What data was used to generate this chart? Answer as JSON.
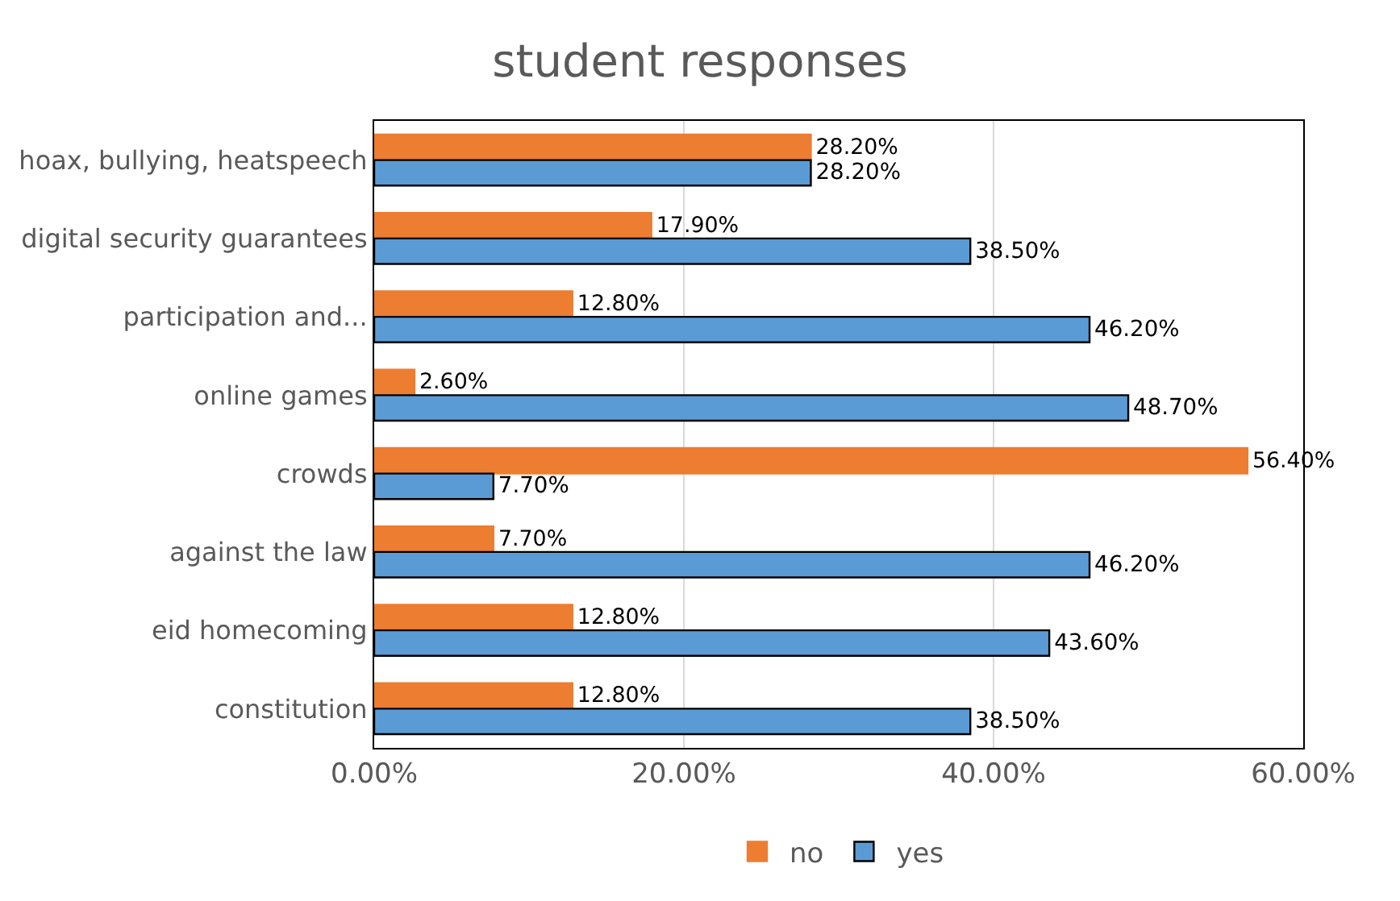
{
  "chart_data": {
    "type": "bar",
    "orientation": "horizontal",
    "title": "student responses",
    "categories": [
      "hoax, bullying, heatspeech",
      "digital security guarantees",
      "participation and...",
      "online games",
      "crowds",
      "against the law",
      "eid homecoming",
      "constitution"
    ],
    "series": [
      {
        "name": "no",
        "color": "#ed7d31",
        "values": [
          28.2,
          17.9,
          12.8,
          2.6,
          56.4,
          7.7,
          12.8,
          12.8
        ],
        "value_labels": [
          "28.20%",
          "17.90%",
          "12.80%",
          "2.60%",
          "56.40%",
          "7.70%",
          "12.80%",
          "12.80%"
        ]
      },
      {
        "name": "yes",
        "color": "#5b9bd5",
        "values": [
          28.2,
          38.5,
          46.2,
          48.7,
          7.7,
          46.2,
          43.6,
          38.5
        ],
        "value_labels": [
          "28.20%",
          "38.50%",
          "46.20%",
          "48.70%",
          "7.70%",
          "46.20%",
          "43.60%",
          "38.50%"
        ]
      }
    ],
    "xlim": [
      0,
      60
    ],
    "xticks": [
      {
        "value": 0,
        "label": "0.00%"
      },
      {
        "value": 20,
        "label": "20.00%"
      },
      {
        "value": 40,
        "label": "40.00%"
      },
      {
        "value": 60,
        "label": "60.00%"
      }
    ],
    "grid": "x",
    "legend": "bottom"
  }
}
